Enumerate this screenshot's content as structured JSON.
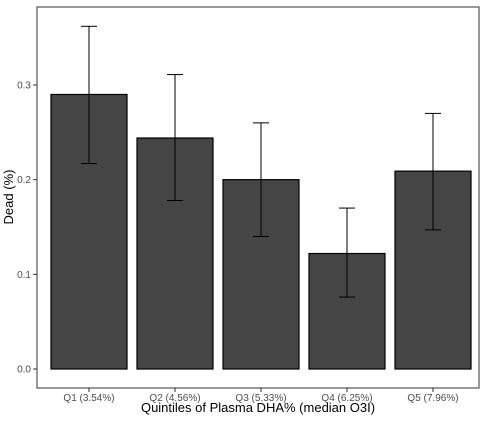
{
  "chart_data": {
    "type": "bar",
    "title": "",
    "xlabel": "Quintiles of Plasma DHA% (median O3I)",
    "ylabel": "Dead (%)",
    "categories": [
      "Q1 (3.54%)",
      "Q2 (4.56%)",
      "Q3 (5.33%)",
      "Q4 (6.25%)",
      "Q5 (7.96%)"
    ],
    "values": [
      0.29,
      0.244,
      0.2,
      0.122,
      0.209
    ],
    "error_low": [
      0.217,
      0.178,
      0.14,
      0.076,
      0.147
    ],
    "error_high": [
      0.362,
      0.311,
      0.26,
      0.17,
      0.27
    ],
    "ylim": [
      0,
      0.38
    ],
    "yticks": [
      0.0,
      0.1,
      0.2,
      0.3
    ],
    "ytick_labels": [
      "0.0",
      "0.1",
      "0.2",
      "0.3"
    ],
    "grid": false,
    "bar_color": "#454545",
    "bar_edge_color": "#000000",
    "error_bar_color": "#000000"
  }
}
